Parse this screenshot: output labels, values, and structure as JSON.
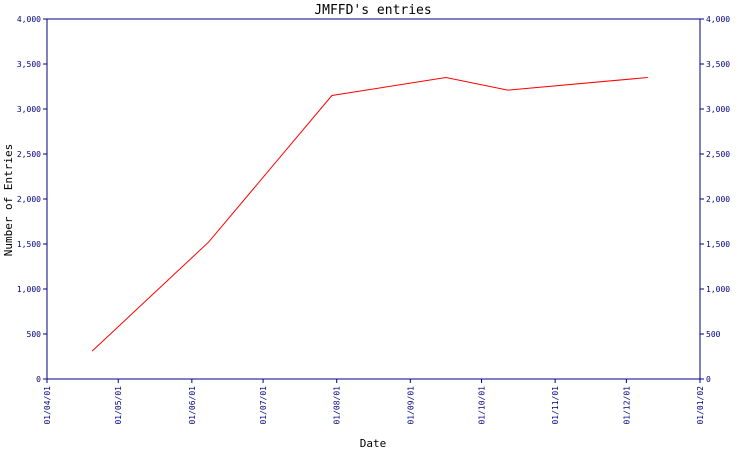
{
  "chart_data": {
    "type": "line",
    "title": "JMFFD's entries",
    "xlabel": "Date",
    "ylabel": "Number of Entries",
    "x_ticks": [
      "01/04/01",
      "01/05/01",
      "01/06/01",
      "01/07/01",
      "01/08/01",
      "01/09/01",
      "01/10/01",
      "01/11/01",
      "01/12/01",
      "01/01/02"
    ],
    "y_ticks": [
      "0",
      "500",
      "1,000",
      "1,500",
      "2,000",
      "2,500",
      "3,000",
      "3,500",
      "4,000"
    ],
    "ylim": [
      0,
      4000
    ],
    "xlim": [
      "01/04/01",
      "01/01/02"
    ],
    "grid": false,
    "series": [
      {
        "x": [
          "20/04/01",
          "08/06/01",
          "30/07/01",
          "16/09/01",
          "12/10/01",
          "10/12/01"
        ],
        "y": [
          310,
          1520,
          3150,
          3350,
          3210,
          3350
        ]
      }
    ],
    "colors": {
      "axis": "#000080",
      "line": "#ff0000",
      "text": "#000080"
    }
  }
}
